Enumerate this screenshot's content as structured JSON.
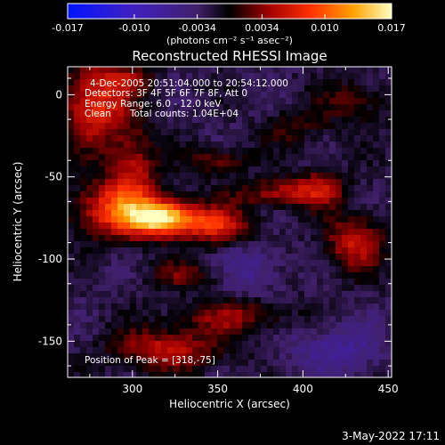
{
  "chart_data": {
    "type": "heatmap",
    "title": "Reconstructed RHESSI Image",
    "xlabel": "Heliocentric X (arcsec)",
    "ylabel": "Heliocentric Y (arcsec)",
    "xlim": [
      262,
      452
    ],
    "ylim": [
      -172,
      17
    ],
    "x_ticks": [
      {
        "value": 300,
        "label": "300"
      },
      {
        "value": 350,
        "label": "350"
      },
      {
        "value": 400,
        "label": "400"
      },
      {
        "value": 450,
        "label": "450"
      }
    ],
    "y_ticks": [
      {
        "value": 0,
        "label": "0"
      },
      {
        "value": -50,
        "label": "-50"
      },
      {
        "value": -100,
        "label": "-100"
      },
      {
        "value": -150,
        "label": "-150"
      }
    ],
    "colorbar": {
      "range": [
        -0.017,
        0.017
      ],
      "tick_labels": [
        "-0.017",
        "-0.010",
        "-0.0034",
        "0.0034",
        "0.010",
        "0.017"
      ],
      "unit_label": "(photons cm⁻² s⁻¹ asec⁻²)"
    },
    "annotations": [
      "4-Dec-2005 20:51:04.000 to 20:54:12.000",
      "Detectors: 3F 4F 5F 6F 7F 8F, Att 0",
      "Energy Range: 6.0 - 12.0 keV",
      "Clean",
      "Total counts: 1.04E+04",
      "Position of Peak = [318,-75]"
    ],
    "peak": {
      "x": 318,
      "y": -75,
      "value": 0.017
    },
    "sources": [
      {
        "x": 318,
        "y": -75,
        "sx": 14,
        "sy": 7,
        "amp": 0.0175
      },
      {
        "x": 290,
        "y": -70,
        "sx": 18,
        "sy": 12,
        "amp": 0.0095
      },
      {
        "x": 278,
        "y": -5,
        "sx": 14,
        "sy": 18,
        "amp": 0.0095
      },
      {
        "x": 300,
        "y": -45,
        "sx": 10,
        "sy": 18,
        "amp": 0.0065
      },
      {
        "x": 350,
        "y": -80,
        "sx": 14,
        "sy": 8,
        "amp": 0.0085
      },
      {
        "x": 388,
        "y": -60,
        "sx": 20,
        "sy": 6,
        "amp": 0.0065
      },
      {
        "x": 350,
        "y": -40,
        "sx": 12,
        "sy": 6,
        "amp": 0.005
      },
      {
        "x": 430,
        "y": -90,
        "sx": 12,
        "sy": 12,
        "amp": 0.0075
      },
      {
        "x": 410,
        "y": -55,
        "sx": 10,
        "sy": 8,
        "amp": 0.005
      },
      {
        "x": 320,
        "y": -155,
        "sx": 22,
        "sy": 9,
        "amp": 0.0075
      },
      {
        "x": 360,
        "y": -135,
        "sx": 24,
        "sy": 7,
        "amp": 0.0055
      },
      {
        "x": 330,
        "y": -110,
        "sx": 14,
        "sy": 6,
        "amp": 0.0045
      },
      {
        "x": 430,
        "y": -5,
        "sx": 14,
        "sy": 10,
        "amp": 0.004
      },
      {
        "x": 395,
        "y": -20,
        "sx": 12,
        "sy": 8,
        "amp": 0.0035
      },
      {
        "x": 300,
        "y": 10,
        "sx": 10,
        "sy": 6,
        "amp": 0.004
      },
      {
        "x": 370,
        "y": -105,
        "sx": 12,
        "sy": 10,
        "amp": -0.004
      },
      {
        "x": 420,
        "y": -155,
        "sx": 20,
        "sy": 12,
        "amp": -0.004
      }
    ]
  },
  "footer": {
    "timestamp": "3-May-2022 17:11"
  }
}
